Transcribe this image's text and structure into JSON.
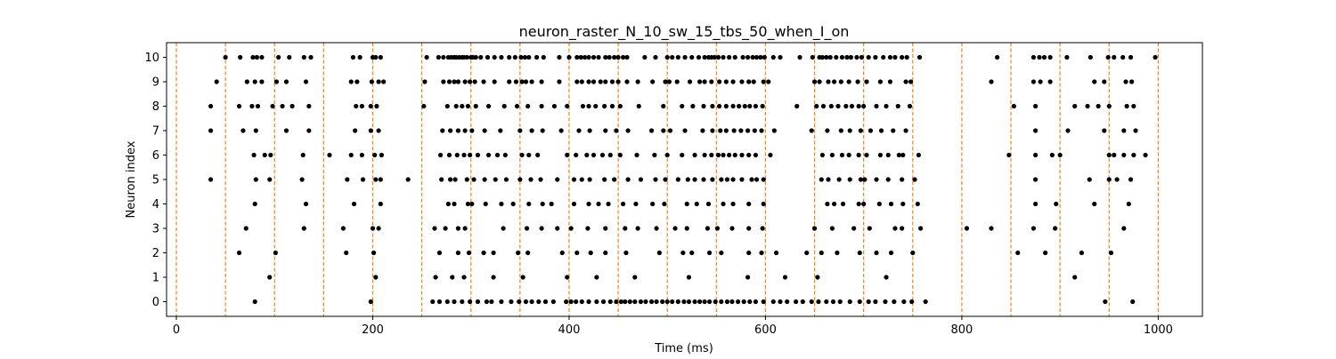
{
  "chart_data": {
    "type": "scatter",
    "title": "neuron_raster_N_10_sw_15_tbs_50_when_I_on",
    "xlabel": "Time (ms)",
    "ylabel": "Neuron index",
    "xlim": [
      -10,
      1045
    ],
    "ylim": [
      -0.6,
      10.6
    ],
    "xticks": [
      0,
      200,
      400,
      600,
      800,
      1000
    ],
    "yticks": [
      0,
      1,
      2,
      3,
      4,
      5,
      6,
      7,
      8,
      9,
      10
    ],
    "grid": false,
    "marker_color": "#000000",
    "vline_color": "#ff7f0e",
    "vlines": [
      0,
      50,
      100,
      150,
      200,
      250,
      300,
      350,
      400,
      450,
      500,
      550,
      600,
      650,
      700,
      750,
      800,
      850,
      900,
      950,
      1000
    ],
    "spikes": [
      {
        "neuron": 10,
        "times": [
          50,
          65,
          78,
          82,
          87,
          104,
          115,
          130,
          137,
          180,
          187,
          200,
          203,
          208,
          255,
          267,
          272,
          277,
          280,
          283,
          285,
          288,
          291,
          293,
          296,
          300,
          302,
          305,
          310,
          317,
          324,
          331,
          339,
          345,
          351,
          355,
          359,
          367,
          374,
          390,
          400,
          408,
          412,
          416,
          420,
          425,
          430,
          437,
          441,
          446,
          450,
          455,
          459,
          477,
          488,
          500,
          505,
          511,
          518,
          525,
          532,
          538,
          542,
          545,
          548,
          552,
          557,
          563,
          569,
          577,
          582,
          587,
          591,
          595,
          599,
          608,
          615,
          635,
          648,
          655,
          658,
          662,
          666,
          672,
          678,
          683,
          687,
          693,
          698,
          705,
          712,
          720,
          727,
          732,
          739,
          744,
          757,
          836,
          873,
          879,
          884,
          890,
          907,
          931,
          949,
          955,
          964,
          972,
          997
        ]
      },
      {
        "neuron": 9,
        "times": [
          41,
          72,
          80,
          87,
          102,
          112,
          132,
          178,
          184,
          199,
          206,
          211,
          253,
          272,
          278,
          283,
          287,
          294,
          299,
          304,
          313,
          324,
          339,
          346,
          352,
          356,
          362,
          372,
          390,
          408,
          413,
          420,
          425,
          432,
          437,
          444,
          450,
          459,
          470,
          485,
          498,
          502,
          510,
          523,
          533,
          538,
          545,
          553,
          560,
          567,
          576,
          583,
          588,
          598,
          603,
          650,
          655,
          664,
          670,
          677,
          685,
          694,
          703,
          717,
          727,
          743,
          748,
          830,
          873,
          880,
          890,
          935,
          945,
          967,
          973
        ]
      },
      {
        "neuron": 8,
        "times": [
          35,
          64,
          77,
          83,
          98,
          108,
          118,
          135,
          183,
          189,
          198,
          204,
          252,
          276,
          285,
          291,
          297,
          305,
          318,
          334,
          347,
          358,
          372,
          385,
          398,
          414,
          420,
          427,
          436,
          444,
          452,
          471,
          496,
          515,
          526,
          537,
          546,
          553,
          560,
          567,
          573,
          579,
          584,
          590,
          597,
          632,
          652,
          659,
          667,
          674,
          682,
          688,
          695,
          700,
          713,
          723,
          735,
          747,
          853,
          875,
          915,
          928,
          939,
          950,
          968,
          975
        ]
      },
      {
        "neuron": 7,
        "times": [
          35,
          68,
          81,
          112,
          135,
          182,
          198,
          206,
          271,
          279,
          287,
          294,
          301,
          314,
          330,
          350,
          362,
          373,
          392,
          410,
          421,
          437,
          448,
          460,
          484,
          496,
          503,
          518,
          536,
          546,
          554,
          560,
          568,
          575,
          582,
          589,
          596,
          609,
          647,
          663,
          677,
          686,
          697,
          707,
          718,
          730,
          743,
          875,
          908,
          945,
          965,
          977
        ]
      },
      {
        "neuron": 6,
        "times": [
          79,
          90,
          96,
          129,
          156,
          178,
          189,
          202,
          209,
          269,
          278,
          286,
          293,
          299,
          307,
          318,
          327,
          335,
          352,
          359,
          368,
          398,
          407,
          418,
          425,
          434,
          442,
          452,
          469,
          487,
          500,
          515,
          528,
          538,
          545,
          552,
          557,
          563,
          569,
          576,
          583,
          590,
          605,
          658,
          668,
          678,
          685,
          695,
          703,
          717,
          725,
          736,
          740,
          756,
          848,
          875,
          892,
          900,
          950,
          955,
          965,
          975,
          987
        ]
      },
      {
        "neuron": 5,
        "times": [
          35,
          81,
          95,
          128,
          174,
          190,
          203,
          208,
          236,
          270,
          279,
          284,
          296,
          303,
          314,
          325,
          336,
          350,
          361,
          371,
          388,
          405,
          413,
          421,
          436,
          446,
          460,
          473,
          488,
          498,
          511,
          521,
          528,
          537,
          546,
          555,
          561,
          567,
          576,
          586,
          591,
          598,
          657,
          664,
          675,
          686,
          697,
          701,
          713,
          725,
          739,
          752,
          875,
          930,
          950,
          958,
          972
        ]
      },
      {
        "neuron": 4,
        "times": [
          80,
          132,
          181,
          208,
          277,
          283,
          297,
          301,
          315,
          331,
          343,
          359,
          373,
          382,
          405,
          420,
          430,
          440,
          455,
          468,
          485,
          497,
          520,
          530,
          542,
          557,
          567,
          583,
          598,
          663,
          670,
          679,
          695,
          700,
          716,
          728,
          740,
          755,
          875,
          896,
          935,
          970
        ]
      },
      {
        "neuron": 3,
        "times": [
          71,
          130,
          170,
          200,
          206,
          263,
          274,
          287,
          294,
          333,
          357,
          372,
          388,
          402,
          419,
          437,
          457,
          470,
          489,
          508,
          520,
          541,
          551,
          566,
          583,
          597,
          650,
          668,
          690,
          706,
          732,
          739,
          758,
          805,
          830,
          873,
          895,
          965
        ]
      },
      {
        "neuron": 2,
        "times": [
          64,
          101,
          173,
          201,
          268,
          287,
          298,
          313,
          323,
          348,
          358,
          393,
          408,
          422,
          437,
          458,
          492,
          516,
          525,
          543,
          555,
          583,
          596,
          611,
          642,
          657,
          673,
          696,
          713,
          728,
          750,
          857,
          885,
          922,
          952
        ]
      },
      {
        "neuron": 1,
        "times": [
          95,
          203,
          264,
          281,
          293,
          323,
          353,
          398,
          428,
          467,
          522,
          582,
          620,
          653,
          723,
          915
        ]
      },
      {
        "neuron": 0,
        "times": [
          80,
          198,
          261,
          268,
          276,
          283,
          291,
          299,
          307,
          316,
          321,
          331,
          341,
          349,
          356,
          362,
          369,
          376,
          384,
          397,
          402,
          407,
          413,
          420,
          428,
          435,
          442,
          448,
          453,
          457,
          462,
          467,
          473,
          478,
          484,
          489,
          495,
          500,
          505,
          511,
          517,
          522,
          528,
          533,
          538,
          543,
          549,
          555,
          561,
          566,
          572,
          578,
          584,
          590,
          598,
          608,
          615,
          622,
          631,
          638,
          647,
          654,
          662,
          669,
          676,
          686,
          696,
          705,
          712,
          722,
          731,
          741,
          749,
          763,
          946,
          974
        ]
      }
    ]
  }
}
